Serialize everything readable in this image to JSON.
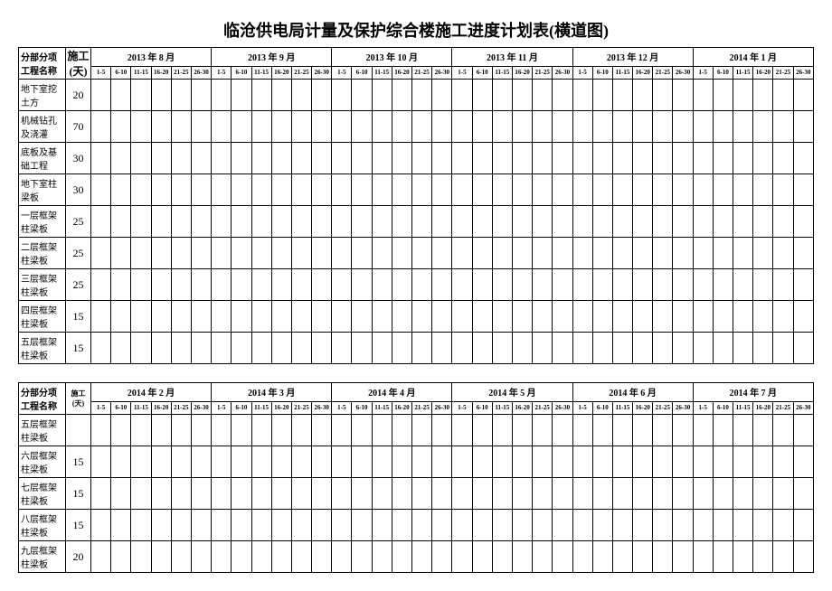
{
  "title": "临沧供电局计量及保护综合楼施工进度计划表(横道图)",
  "header_name": "分部分项工程名称",
  "header_days": "施工(天)",
  "sub_ranges": [
    "1-5",
    "6-10",
    "11-15",
    "16-20",
    "21-25",
    "26-30"
  ],
  "sub_ranges_oct": [
    "1-5",
    "6-10",
    "11-15",
    "16-20",
    "21-25",
    "26-30"
  ],
  "table1": {
    "months": [
      "2013 年 8 月",
      "2013 年 9 月",
      "2013 年 10 月",
      "2013 年 11 月",
      "2013 年 12 月",
      "2014 年 1 月"
    ],
    "tasks": [
      {
        "name": "地下室挖土方",
        "days": "20"
      },
      {
        "name": "机械钻孔及浇灌",
        "days": "70"
      },
      {
        "name": "底板及基础工程",
        "days": "30"
      },
      {
        "name": "地下室柱梁板",
        "days": "30"
      },
      {
        "name": "一层框架柱梁板",
        "days": "25"
      },
      {
        "name": "二层框架柱梁板",
        "days": "25"
      },
      {
        "name": "三层框架柱梁板",
        "days": "25"
      },
      {
        "name": "四层框架柱梁板",
        "days": "15"
      },
      {
        "name": "五层框架柱梁板",
        "days": "15"
      }
    ]
  },
  "table2": {
    "months": [
      "2014 年 2 月",
      "2014 年 3 月",
      "2014 年 4 月",
      "2014 年 5 月",
      "2014 年 6 月",
      "2014 年 7 月"
    ],
    "tasks": [
      {
        "name": "五层框架柱梁板",
        "days": ""
      },
      {
        "name": "六层框架柱梁板",
        "days": "15"
      },
      {
        "name": "七层框架柱梁板",
        "days": "15"
      },
      {
        "name": "八层框架柱梁板",
        "days": "15"
      },
      {
        "name": "九层框架柱梁板",
        "days": "20"
      }
    ]
  }
}
